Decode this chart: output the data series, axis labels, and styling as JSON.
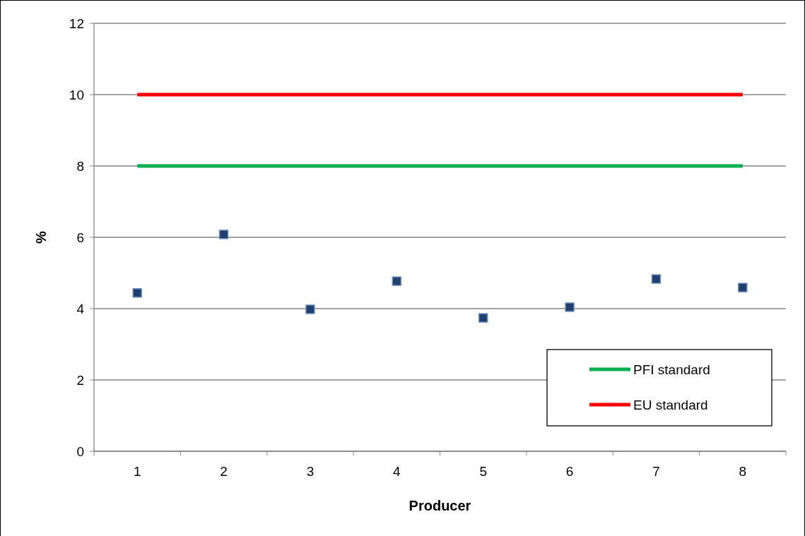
{
  "chart_data": {
    "type": "scatter",
    "xlabel": "Producer",
    "ylabel": "%",
    "categories": [
      "1",
      "2",
      "3",
      "4",
      "5",
      "6",
      "7",
      "8"
    ],
    "series": [
      {
        "marker": "square",
        "color": "#1f3f6f",
        "values": [
          4.44,
          6.08,
          3.98,
          4.77,
          3.74,
          4.04,
          4.83,
          4.59
        ]
      },
      {
        "type": "line",
        "marker": "none",
        "name": "PFI standard",
        "color": "#00b050",
        "values": [
          8,
          8,
          8,
          8,
          8,
          8,
          8,
          8
        ]
      },
      {
        "type": "line",
        "marker": "none",
        "name": "EU standard",
        "color": "#ff0000",
        "values": [
          10,
          10,
          10,
          10,
          10,
          10,
          10,
          10
        ]
      }
    ],
    "ylim": [
      0,
      12
    ],
    "yticks": [
      0,
      2,
      4,
      6,
      8,
      10,
      12
    ],
    "grid": "y",
    "legend": "bottom right",
    "line_style": "solid"
  }
}
